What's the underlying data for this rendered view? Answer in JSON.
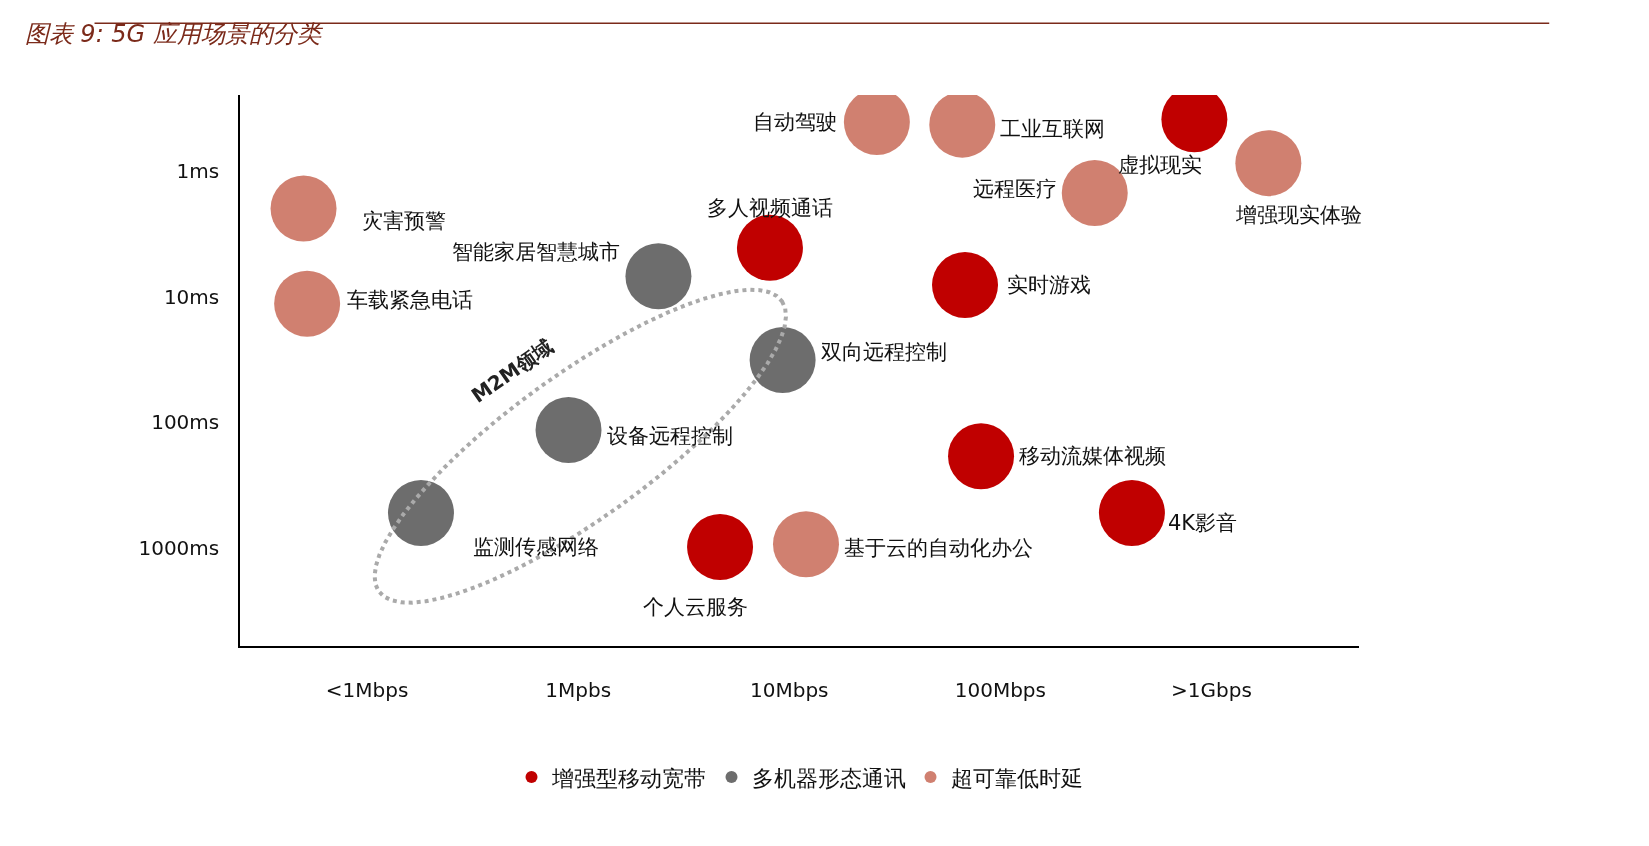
{
  "chart_data": {
    "type": "scatter",
    "title": "图表 9: 5G 应用场景的分类",
    "log": "xy",
    "grid": false,
    "legend": "bottom",
    "marker": "circle",
    "xlim": [
      0.025,
      5000
    ],
    "ylim": [
      6000,
      0.25
    ],
    "xticks": [
      {
        "value": 0.1,
        "label": "<1Mbps"
      },
      {
        "value": 1,
        "label": "1Mpbs"
      },
      {
        "value": 10,
        "label": "10Mbps"
      },
      {
        "value": 100,
        "label": "100Mbps"
      },
      {
        "value": 1000,
        "label": ">1Gbps"
      }
    ],
    "yticks": [
      {
        "value": 1,
        "label": "1ms"
      },
      {
        "value": 10,
        "label": "10ms"
      },
      {
        "value": 100,
        "label": "100ms"
      },
      {
        "value": 1000,
        "label": "1000ms"
      }
    ],
    "series": [
      {
        "name": "增强型移动宽带",
        "color": "#c00000",
        "x": [
          8.1,
          68,
          830,
          81,
          420,
          4.7
        ],
        "values": [
          4.1,
          8.1,
          0.39,
          186,
          525,
          980
        ]
      },
      {
        "name": "多机器形态通讯",
        "color": "#6d6d6d",
        "x": [
          2.4,
          9.3,
          0.9,
          0.18
        ],
        "values": [
          6.9,
          32,
          115,
          525
        ]
      },
      {
        "name": "超可靠低时延",
        "color": "#d08070",
        "x": [
          26,
          66,
          280,
          1860,
          0.05,
          0.052,
          12
        ],
        "values": [
          0.41,
          0.43,
          1.5,
          0.87,
          2.0,
          11.4,
          930
        ]
      }
    ],
    "annotations": [
      "M2M领域",
      {
        "text": "多人视频通话",
        "x": 8.1,
        "y": 4.1
      },
      {
        "text": "实时游戏",
        "x": 68,
        "y": 8.1
      },
      {
        "text": "虚拟现实",
        "x": 830,
        "y": 0.39
      },
      {
        "text": "移动流媒体视频",
        "x": 81,
        "y": 186
      },
      {
        "text": "4K影音",
        "x": 420,
        "y": 525
      },
      {
        "text": "个人云服务",
        "x": 4.7,
        "y": 980
      },
      {
        "text": "智能家居智慧城市",
        "x": 2.4,
        "y": 6.9
      },
      {
        "text": "双向远程控制",
        "x": 9.3,
        "y": 32
      },
      {
        "text": "设备远程控制",
        "x": 0.9,
        "y": 115
      },
      {
        "text": "监测传感网络",
        "x": 0.18,
        "y": 525
      },
      {
        "text": "自动驾驶",
        "x": 26,
        "y": 0.41
      },
      {
        "text": "工业互联网",
        "x": 66,
        "y": 0.43
      },
      {
        "text": "远程医疗",
        "x": 280,
        "y": 1.5
      },
      {
        "text": "增强现实体验",
        "x": 1860,
        "y": 0.87
      },
      {
        "text": "灾害预警",
        "x": 0.05,
        "y": 2.0
      },
      {
        "text": "车载紧急电话",
        "x": 0.052,
        "y": 11.4
      },
      {
        "text": "基于云的自动化办公",
        "x": 12,
        "y": 930
      }
    ]
  }
}
